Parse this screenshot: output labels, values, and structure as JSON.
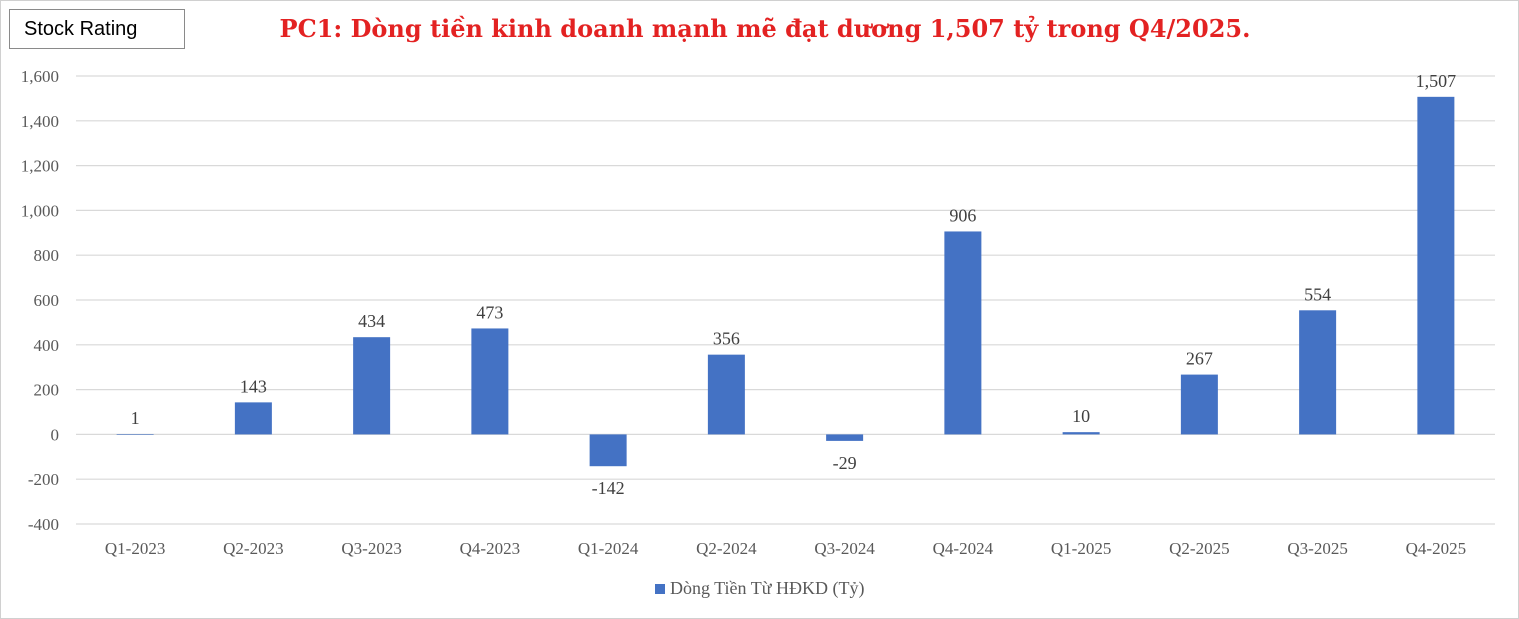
{
  "badge": "Stock Rating",
  "chart_data": {
    "type": "bar",
    "title": "PC1: Dòng tiền kinh doanh mạnh mẽ đạt dương 1,507 tỷ trong Q4/2025.",
    "categories": [
      "Q1-2023",
      "Q2-2023",
      "Q3-2023",
      "Q4-2023",
      "Q1-2024",
      "Q2-2024",
      "Q3-2024",
      "Q4-2024",
      "Q1-2025",
      "Q2-2025",
      "Q3-2025",
      "Q4-2025"
    ],
    "series": [
      {
        "name": "Dòng Tiền Từ HĐKD (Tỷ)",
        "values": [
          1,
          143,
          434,
          473,
          -142,
          356,
          -29,
          906,
          10,
          267,
          554,
          1507
        ],
        "labels": [
          "1",
          "143",
          "434",
          "473",
          "-142",
          "356",
          "-29",
          "906",
          "10",
          "267",
          "554",
          "1,507"
        ],
        "color": "#4472c4"
      }
    ],
    "ylim": [
      -400,
      1600
    ],
    "yticks": [
      -400,
      -200,
      0,
      200,
      400,
      600,
      800,
      1000,
      1200,
      1400,
      1600
    ],
    "ytick_labels": [
      "-400",
      "-200",
      "0",
      "200",
      "400",
      "600",
      "800",
      "1,000",
      "1,200",
      "1,400",
      "1,600"
    ],
    "grid": true,
    "legend_position": "bottom",
    "colors": {
      "title": "#e32222",
      "bar": "#4472c4",
      "grid": "#d9d9d9"
    }
  }
}
